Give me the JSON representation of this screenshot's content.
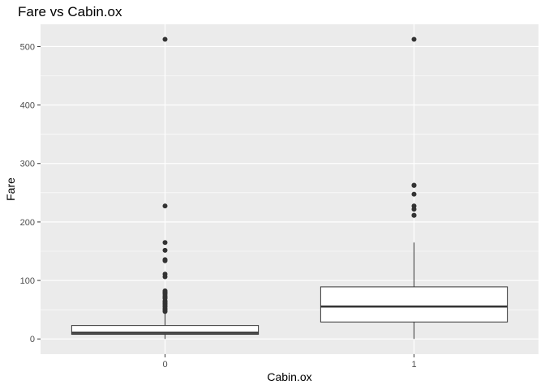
{
  "chart_data": {
    "type": "boxplot",
    "title": "Fare vs Cabin.ox",
    "xlabel": "Cabin.ox",
    "ylabel": "Fare",
    "categories": [
      "0",
      "1"
    ],
    "y_ticks": [
      0,
      100,
      200,
      300,
      400,
      500
    ],
    "y_tick_labels": [
      "0",
      "100",
      "200",
      "300",
      "400",
      "500"
    ],
    "ylim": [
      -26,
      538
    ],
    "grid": true,
    "legend": "none",
    "boxes": [
      {
        "category": "0",
        "q1": 7.9,
        "median": 10.5,
        "q3": 23.0,
        "whisker_low": 0,
        "whisker_high": 45.5,
        "outliers": [
          46.9,
          49.5,
          51.9,
          55.0,
          56.5,
          59.4,
          61.2,
          63.4,
          65.0,
          69.5,
          71.0,
          73.5,
          76.7,
          79.2,
          80.0,
          82.2,
          106.4,
          110.9,
          133.7,
          135.6,
          151.6,
          164.9,
          227.5,
          512.3
        ]
      },
      {
        "category": "1",
        "q1": 29.0,
        "median": 55.4,
        "q3": 89.1,
        "whisker_low": 0,
        "whisker_high": 164.9,
        "outliers": [
          211.3,
          211.5,
          221.8,
          227.5,
          247.5,
          262.4,
          263.0,
          512.3
        ]
      }
    ],
    "colors": {
      "panel": "#ebebeb",
      "grid_major": "#ffffff",
      "box_fill": "#ffffff",
      "box_line": "#333333",
      "outlier": "#333333"
    }
  }
}
